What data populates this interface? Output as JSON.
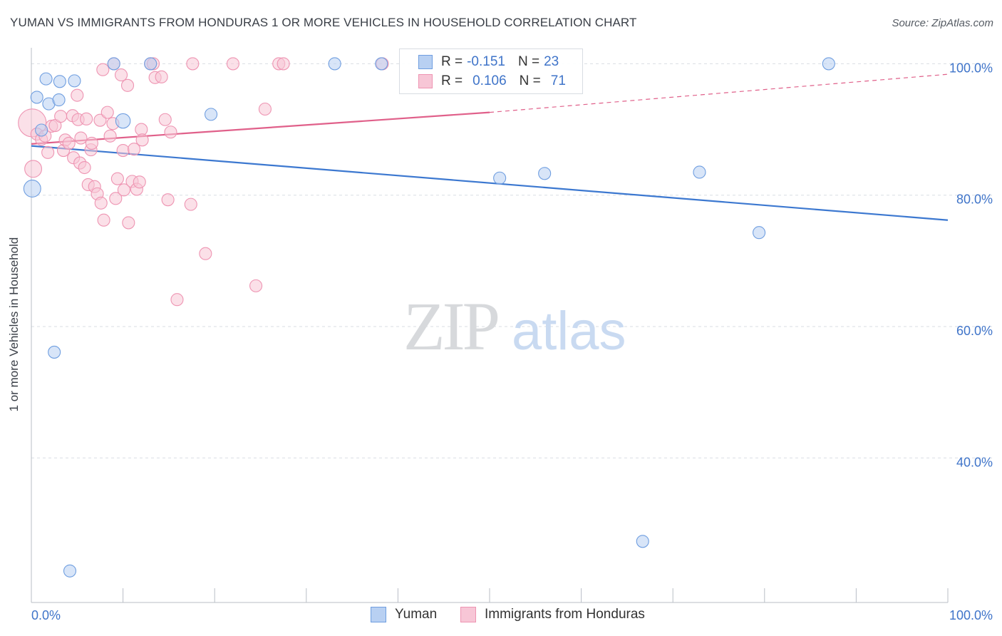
{
  "header": {
    "title": "YUMAN VS IMMIGRANTS FROM HONDURAS 1 OR MORE VEHICLES IN HOUSEHOLD CORRELATION CHART",
    "source": "Source: ZipAtlas.com"
  },
  "watermark": {
    "zip": "ZIP",
    "atlas": "atlas"
  },
  "legend": {
    "rows": [
      {
        "r_label": "R =",
        "r_value": "-0.151",
        "n_label": "N =",
        "n_value": "23"
      },
      {
        "r_label": "R =",
        "r_value": "0.106",
        "n_label": "N =",
        "n_value": "71"
      }
    ]
  },
  "bottom_legend": {
    "series1": "Yuman",
    "series2": "Immigrants from Honduras"
  },
  "colors": {
    "blue_fill": "#b8d0f2",
    "blue_stroke": "#6f9ee0",
    "blue_line": "#3c78d0",
    "pink_fill": "#f7c6d6",
    "pink_stroke": "#ee94b2",
    "pink_line": "#e0608a",
    "axis_text": "#3f74c9",
    "grid": "#d9dde3"
  },
  "chart_data": {
    "type": "scatter",
    "title": "YUMAN VS IMMIGRANTS FROM HONDURAS 1 OR MORE VEHICLES IN HOUSEHOLD CORRELATION CHART",
    "xlabel": "",
    "ylabel": "1 or more Vehicles in Household",
    "xlim": [
      0,
      100
    ],
    "ylim": [
      18,
      102
    ],
    "x_tick_labels": [
      {
        "value": 0,
        "label": "0.0%"
      },
      {
        "value": 100,
        "label": "100.0%"
      }
    ],
    "y_tick_labels": [
      {
        "value": 100,
        "label": "100.0%"
      },
      {
        "value": 80,
        "label": "80.0%"
      },
      {
        "value": 60,
        "label": "60.0%"
      },
      {
        "value": 40,
        "label": "40.0%"
      }
    ],
    "series": [
      {
        "name": "Yuman",
        "r": -0.151,
        "n": 23,
        "trend": {
          "x0": 0,
          "y0": 87.5,
          "x1": 100,
          "y1": 76.2
        },
        "points": [
          [
            0.1,
            81.0,
            1.4
          ],
          [
            0.6,
            94.9,
            1
          ],
          [
            1.6,
            97.7,
            1
          ],
          [
            1.1,
            89.9,
            1
          ],
          [
            1.9,
            93.9,
            1
          ],
          [
            3.1,
            97.3,
            1
          ],
          [
            4.7,
            97.4,
            1
          ],
          [
            3.0,
            94.5,
            1
          ],
          [
            2.5,
            56.1,
            1
          ],
          [
            4.2,
            22.8,
            1
          ],
          [
            9.0,
            100.0,
            1
          ],
          [
            10.0,
            91.3,
            1.2
          ],
          [
            13.0,
            100.0,
            1
          ],
          [
            19.6,
            92.3,
            1
          ],
          [
            33.1,
            100.0,
            1
          ],
          [
            38.2,
            100.0,
            1
          ],
          [
            51.1,
            82.6,
            1
          ],
          [
            56.0,
            83.3,
            1
          ],
          [
            72.9,
            83.5,
            1
          ],
          [
            66.7,
            27.3,
            1
          ],
          [
            79.4,
            74.3,
            1
          ],
          [
            87.0,
            100.0,
            1
          ]
        ]
      },
      {
        "name": "Immigrants from Honduras",
        "r": 0.106,
        "n": 71,
        "trend": {
          "x0": 0,
          "y0": 87.8,
          "x1": 50,
          "y1": 92.6,
          "x_dash_end": 100,
          "y_dash_end": 98.4
        },
        "points": [
          [
            0.1,
            91.0,
            2.3
          ],
          [
            0.2,
            84.0,
            1.4
          ],
          [
            0.6,
            89.3,
            1
          ],
          [
            1.1,
            88.5,
            1
          ],
          [
            1.5,
            89.0,
            1
          ],
          [
            1.8,
            86.5,
            1
          ],
          [
            2.2,
            90.5,
            1
          ],
          [
            2.6,
            90.6,
            1
          ],
          [
            3.2,
            92.0,
            1
          ],
          [
            3.5,
            86.8,
            1
          ],
          [
            3.7,
            88.4,
            1
          ],
          [
            4.1,
            87.9,
            1
          ],
          [
            4.5,
            92.1,
            1
          ],
          [
            4.6,
            85.7,
            1
          ],
          [
            5.0,
            95.2,
            1
          ],
          [
            5.1,
            91.5,
            1
          ],
          [
            5.3,
            84.9,
            1
          ],
          [
            5.4,
            88.7,
            1
          ],
          [
            5.8,
            84.2,
            1
          ],
          [
            6.0,
            91.6,
            1
          ],
          [
            6.2,
            81.6,
            1
          ],
          [
            6.5,
            86.9,
            1
          ],
          [
            6.6,
            87.9,
            1
          ],
          [
            6.9,
            81.3,
            1
          ],
          [
            7.2,
            80.2,
            1
          ],
          [
            7.5,
            91.4,
            1
          ],
          [
            7.6,
            78.8,
            1
          ],
          [
            7.8,
            99.1,
            1
          ],
          [
            7.9,
            76.2,
            1
          ],
          [
            8.3,
            92.6,
            1
          ],
          [
            8.6,
            89.0,
            1
          ],
          [
            8.9,
            90.9,
            1
          ],
          [
            9.0,
            100.0,
            1
          ],
          [
            9.2,
            79.5,
            1
          ],
          [
            9.4,
            82.5,
            1
          ],
          [
            9.8,
            98.3,
            1
          ],
          [
            10.0,
            86.8,
            1
          ],
          [
            10.1,
            80.8,
            1
          ],
          [
            10.5,
            96.7,
            1
          ],
          [
            10.6,
            75.8,
            1
          ],
          [
            11.0,
            82.1,
            1
          ],
          [
            11.2,
            87.0,
            1
          ],
          [
            11.5,
            80.9,
            1
          ],
          [
            11.8,
            82.0,
            1
          ],
          [
            12.0,
            90.0,
            1
          ],
          [
            12.1,
            88.4,
            1
          ],
          [
            13.0,
            100.0,
            1
          ],
          [
            13.3,
            100.0,
            1
          ],
          [
            13.5,
            97.9,
            1
          ],
          [
            14.2,
            98.0,
            1
          ],
          [
            14.6,
            91.5,
            1
          ],
          [
            14.9,
            79.3,
            1
          ],
          [
            15.2,
            89.6,
            1
          ],
          [
            15.9,
            64.1,
            1
          ],
          [
            17.4,
            78.6,
            1
          ],
          [
            17.6,
            100.0,
            1
          ],
          [
            19.0,
            71.1,
            1
          ],
          [
            22.0,
            100.0,
            1
          ],
          [
            24.5,
            66.2,
            1
          ],
          [
            25.5,
            93.1,
            1
          ],
          [
            27.0,
            100.0,
            1
          ],
          [
            27.5,
            100.0,
            1
          ],
          [
            38.3,
            100.0,
            1
          ]
        ]
      }
    ]
  }
}
